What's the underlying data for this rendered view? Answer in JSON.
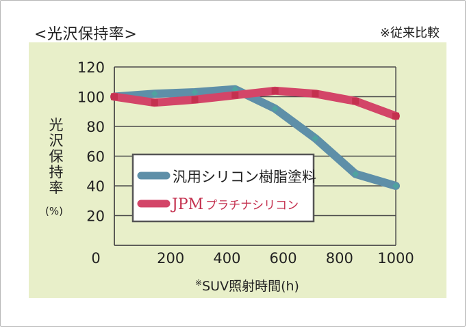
{
  "header": {
    "title": "<光沢保持率>",
    "note": "※従来比較"
  },
  "colors": {
    "panel_bg": "#e8efc9",
    "grid": "#4a4a4a",
    "generic_series": "#5e8fa8",
    "generic_marker": "#4fa3a0",
    "jpm_series": "#d34568",
    "jpm_marker": "#c4314f",
    "jpm_brand": "#c4314f"
  },
  "chart_data": {
    "type": "line",
    "ylabel": "光沢保持率",
    "ylabel_unit": "(%)",
    "xlabel": "SUV照射時間(h)",
    "xlabel_prefix": "※",
    "ylim": [
      0,
      120
    ],
    "xlim": [
      0,
      1000
    ],
    "y_ticks": [
      "120",
      "100",
      "80",
      "60",
      "40",
      "20",
      "0"
    ],
    "x_ticks": [
      "0",
      "200",
      "400",
      "600",
      "800",
      "1000"
    ],
    "grid": true,
    "legend_position": "center-left",
    "series": [
      {
        "name": "汎用シリコン樹脂塗料",
        "x": [
          0,
          143,
          286,
          429,
          571,
          714,
          857,
          1000
        ],
        "y": [
          100,
          102,
          103,
          105,
          92,
          72,
          48,
          40
        ]
      },
      {
        "name": "JPMプラチナシリコン",
        "brand": "JPM",
        "product": "プラチナシリコン",
        "x": [
          0,
          143,
          286,
          429,
          571,
          714,
          857,
          1000
        ],
        "y": [
          100,
          96,
          98,
          101,
          104,
          102,
          97,
          87
        ]
      }
    ]
  }
}
